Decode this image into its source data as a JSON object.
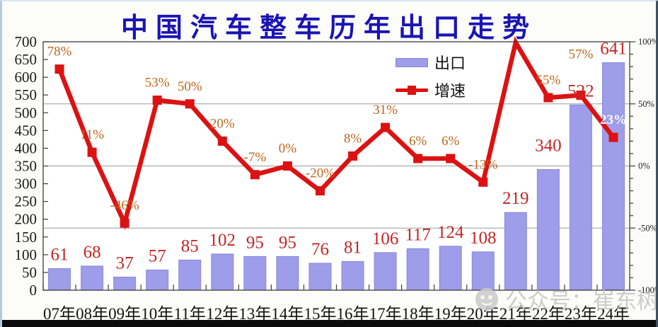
{
  "title": "中国汽车整车历年出口走势",
  "legend": {
    "bar_label": "出口",
    "line_label": "增速"
  },
  "watermark": {
    "icon": "wechat-official-account-icon",
    "text": "公众号：崔东树"
  },
  "colors": {
    "title": "#1a14b4",
    "bar_fill": "#9e9dea",
    "bar_border": "#8a88d8",
    "line": "#dc1212",
    "bar_value_label": "#c22626",
    "pct_label": "#bd671d",
    "axis_text": "#1b1b1b",
    "grid": "#9b9b9b",
    "frame": "#3c3c3c",
    "watermark": "#c7c7c7",
    "bottom_bar": "#0b0b0b"
  },
  "chart_data": {
    "type": "bar",
    "subtype": "bar+line combo",
    "categories": [
      "07年",
      "08年",
      "09年",
      "10年",
      "11年",
      "12年",
      "13年",
      "14年",
      "15年",
      "16年",
      "17年",
      "18年",
      "19年",
      "20年",
      "21年",
      "22年",
      "23年",
      "24年"
    ],
    "series": [
      {
        "name": "出口",
        "type": "bar",
        "axis": "left",
        "values": [
          61,
          68,
          37,
          57,
          85,
          102,
          95,
          95,
          76,
          81,
          106,
          117,
          124,
          108,
          219,
          340,
          522,
          641
        ],
        "labels": [
          "61",
          "68",
          "37",
          "57",
          "85",
          "102",
          "95",
          "95",
          "76",
          "81",
          "106",
          "117",
          "124",
          "108",
          "219",
          "340",
          "522",
          "641"
        ]
      },
      {
        "name": "增速",
        "type": "line",
        "axis": "right",
        "values": [
          78,
          11,
          -46,
          53,
          50,
          20,
          -7,
          0,
          -20,
          8,
          31,
          6,
          6,
          -13,
          103,
          55,
          57,
          23
        ],
        "labels": [
          "78%",
          "11%",
          "-46%",
          "53%",
          "50%",
          "20%",
          "-7%",
          "0%",
          "-20%",
          "8%",
          "31%",
          "6%",
          "6%",
          "-13%",
          "",
          "55%",
          "57%",
          "23%"
        ]
      }
    ],
    "highlight_label": {
      "index": 17,
      "color": "#ffffff"
    },
    "left_axis": {
      "min": 0,
      "max": 700,
      "tick_step": 50,
      "tick_labels": [
        "700",
        "650",
        "600",
        "550",
        "500",
        "450",
        "400",
        "350",
        "300",
        "250",
        "200",
        "150",
        "100",
        "50",
        "0"
      ]
    },
    "right_axis": {
      "min": -100,
      "max": 100,
      "major_step": 50,
      "minor_step": 10,
      "tick_labels": [
        "100%",
        "50%",
        "0%",
        "-50%",
        "-100%"
      ]
    },
    "gridlines_at_right_pct": [
      50,
      0,
      -50
    ],
    "legend_position": "inside-top-center",
    "grid": "horizontal-only"
  }
}
